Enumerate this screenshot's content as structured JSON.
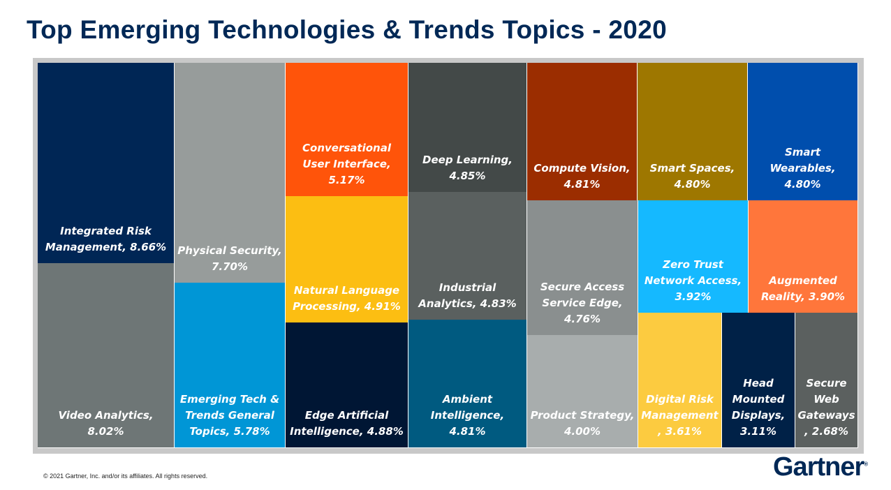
{
  "title": "Top Emerging Technologies & Trends Topics - 2020",
  "chart_data": {
    "type": "treemap",
    "title": "Top Emerging Technologies & Trends Topics - 2020",
    "items": [
      {
        "label": "Integrated Risk Management, 8.66%",
        "name": "Integrated Risk Management",
        "value": 8.66,
        "color": "#002655"
      },
      {
        "label": "Video Analytics, 8.02%",
        "name": "Video Analytics",
        "value": 8.02,
        "color": "#6e7676"
      },
      {
        "label": "Physical Security, 7.70%",
        "name": "Physical Security",
        "value": 7.7,
        "color": "#979c9b"
      },
      {
        "label": "Emerging Tech & Trends General Topics, 5.78%",
        "name": "Emerging Tech & Trends General Topics",
        "value": 5.78,
        "color": "#0096d6"
      },
      {
        "label": "Conversational User Interface, 5.17%",
        "name": "Conversational User Interface",
        "value": 5.17,
        "color": "#ff540a"
      },
      {
        "label": "Natural Language Processing, 4.91%",
        "name": "Natural Language Processing",
        "value": 4.91,
        "color": "#fcbe12"
      },
      {
        "label": "Edge Artificial Intelligence, 4.88%",
        "name": "Edge Artificial Intelligence",
        "value": 4.88,
        "color": "#001634"
      },
      {
        "label": "Deep Learning, 4.85%",
        "name": "Deep Learning",
        "value": 4.85,
        "color": "#434948"
      },
      {
        "label": "Industrial Analytics, 4.83%",
        "name": "Industrial Analytics",
        "value": 4.83,
        "color": "#5a605f"
      },
      {
        "label": "Ambient Intelligence, 4.81%",
        "name": "Ambient Intelligence",
        "value": 4.81,
        "color": "#005a80"
      },
      {
        "label": "Compute Vision, 4.81%",
        "name": "Compute Vision",
        "value": 4.81,
        "color": "#9b2d00"
      },
      {
        "label": "Smart Spaces, 4.80%",
        "name": "Smart Spaces",
        "value": 4.8,
        "color": "#9e7700"
      },
      {
        "label": "Smart Wearables, 4.80%",
        "name": "Smart Wearables",
        "value": 4.8,
        "color": "#004ead"
      },
      {
        "label": "Secure Access Service Edge, 4.76%",
        "name": "Secure Access Service Edge",
        "value": 4.76,
        "color": "#8a8f8f"
      },
      {
        "label": "Product Strategy, 4.00%",
        "name": "Product Strategy",
        "value": 4.0,
        "color": "#a8adad"
      },
      {
        "label": "Zero Trust Network Access, 3.92%",
        "name": "Zero Trust Network Access",
        "value": 3.92,
        "color": "#15b9ff"
      },
      {
        "label": "Augmented Reality, 3.90%",
        "name": "Augmented Reality",
        "value": 3.9,
        "color": "#ff763b"
      },
      {
        "label": "Digital Risk Management , 3.61%",
        "name": "Digital Risk Management",
        "value": 3.61,
        "color": "#fccb40"
      },
      {
        "label": "Head Mounted Displays, 3.11%",
        "name": "Head Mounted Displays",
        "value": 3.11,
        "color": "#002147"
      },
      {
        "label": "Secure Web Gateways , 2.68%",
        "name": "Secure Web Gateways",
        "value": 2.68,
        "color": "#5b605f"
      }
    ]
  },
  "footer": {
    "copyright": "© 2021 Gartner, Inc. and/or its affiliates. All rights reserved.",
    "logo": "Gartner"
  }
}
